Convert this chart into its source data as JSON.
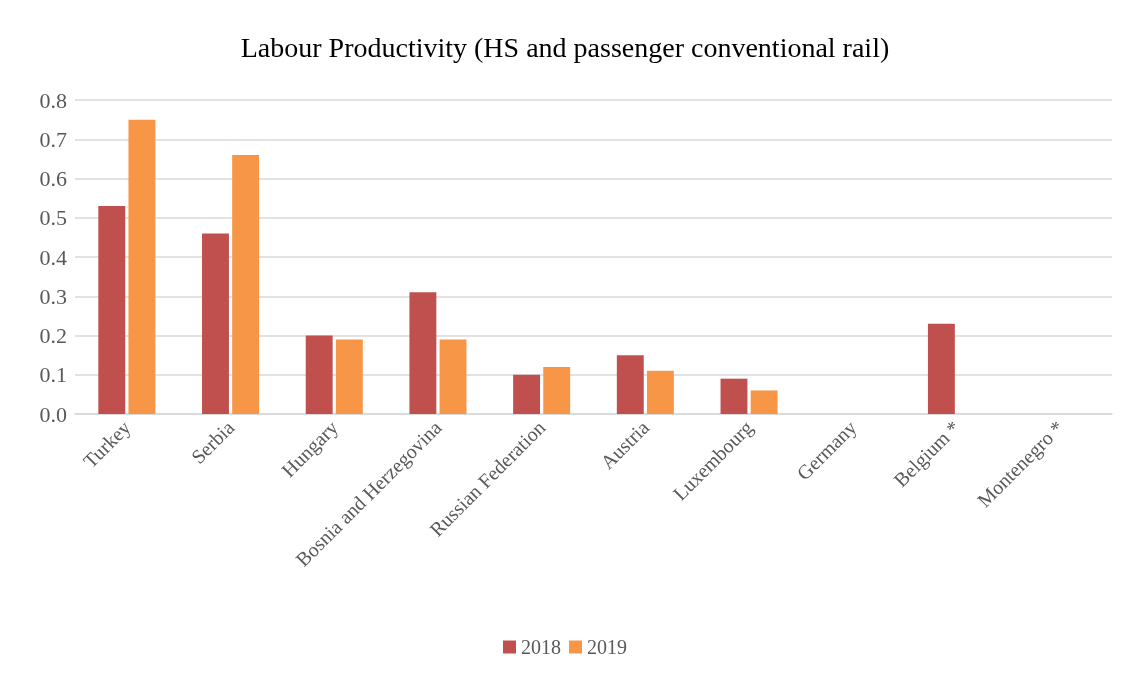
{
  "chart_data": {
    "type": "bar",
    "title": "Labour Productivity (HS and passenger conventional rail)",
    "categories": [
      "Turkey",
      "Serbia",
      "Hungary",
      "Bosnia and Herzegovina",
      "Russian Federation",
      "Austria",
      "Luxembourg",
      "Germany",
      "Belgium *",
      "Montenegro *"
    ],
    "series": [
      {
        "name": "2018",
        "color": "#c0504d",
        "values": [
          0.53,
          0.46,
          0.2,
          0.31,
          0.1,
          0.15,
          0.09,
          null,
          0.23,
          null
        ]
      },
      {
        "name": "2019",
        "color": "#f79646",
        "values": [
          0.75,
          0.66,
          0.19,
          0.19,
          0.12,
          0.11,
          0.06,
          null,
          null,
          null
        ]
      }
    ],
    "ylim": [
      0,
      0.8
    ],
    "yticks": [
      {
        "value": 0,
        "label": "0.0"
      },
      {
        "value": 0.1,
        "label": "0.1"
      },
      {
        "value": 0.2,
        "label": "0.2"
      },
      {
        "value": 0.3,
        "label": "0.3"
      },
      {
        "value": 0.4,
        "label": "0.4"
      },
      {
        "value": 0.5,
        "label": "0.5"
      },
      {
        "value": 0.6,
        "label": "0.6"
      },
      {
        "value": 0.7,
        "label": "0.7"
      },
      {
        "value": 0.8,
        "label": "0.8"
      }
    ],
    "grid": "y",
    "legend": "bottom"
  }
}
